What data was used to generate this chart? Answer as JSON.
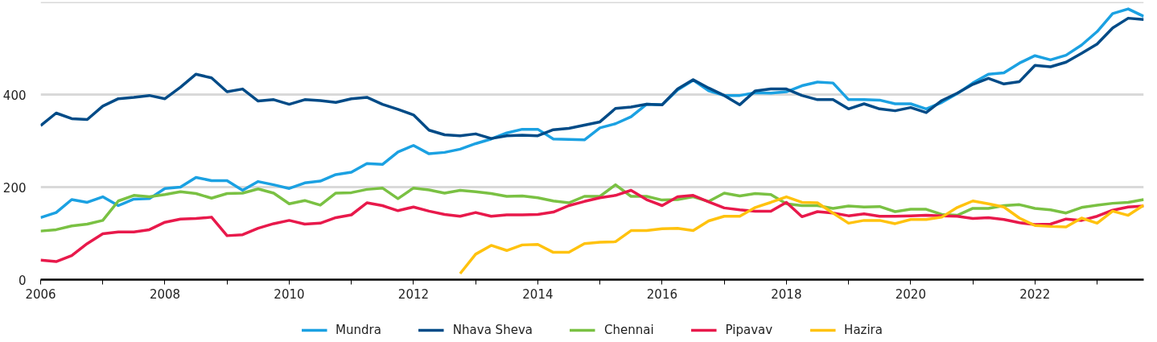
{
  "chart_data": {
    "type": "line",
    "x": [
      2006,
      2006.25,
      2006.5,
      2006.75,
      2007,
      2007.25,
      2007.5,
      2007.75,
      2008,
      2008.25,
      2008.5,
      2008.75,
      2009,
      2009.25,
      2009.5,
      2009.75,
      2010,
      2010.25,
      2010.5,
      2010.75,
      2011,
      2011.25,
      2011.5,
      2011.75,
      2012,
      2012.25,
      2012.5,
      2012.75,
      2013,
      2013.25,
      2013.5,
      2013.75,
      2014,
      2014.25,
      2014.5,
      2014.75,
      2015,
      2015.25,
      2015.5,
      2015.75,
      2016,
      2016.25,
      2016.5,
      2016.75,
      2017,
      2017.25,
      2017.5,
      2017.75,
      2018,
      2018.25,
      2018.5,
      2018.75,
      2019,
      2019.25,
      2019.5,
      2019.75,
      2020,
      2020.25,
      2020.5,
      2020.75,
      2021,
      2021.25,
      2021.5,
      2021.75,
      2022,
      2022.25,
      2022.5,
      2022.75,
      2023,
      2023.25,
      2023.5,
      2023.75
    ],
    "series": [
      {
        "name": "Mundra",
        "color": "#1ba1e2",
        "values": [
          134,
          145,
          173,
          167,
          179,
          160,
          174,
          175,
          197,
          200,
          221,
          214,
          214,
          193,
          212,
          205,
          197,
          209,
          213,
          227,
          232,
          251,
          249,
          276,
          290,
          272,
          275,
          282,
          294,
          304,
          317,
          325,
          325,
          304,
          303,
          302,
          328,
          337,
          352,
          379,
          378,
          410,
          431,
          408,
          398,
          398,
          404,
          403,
          406,
          419,
          427,
          425,
          389,
          389,
          388,
          380,
          380,
          369,
          383,
          402,
          425,
          444,
          447,
          468,
          484,
          475,
          485,
          507,
          536,
          575,
          585,
          569
        ]
      },
      {
        "name": "Nhava Sheva",
        "color": "#004b87",
        "values": [
          333,
          360,
          348,
          346,
          375,
          391,
          394,
          398,
          391,
          416,
          444,
          436,
          406,
          412,
          386,
          389,
          379,
          389,
          387,
          383,
          391,
          394,
          379,
          368,
          356,
          323,
          313,
          311,
          315,
          305,
          311,
          312,
          311,
          324,
          327,
          334,
          341,
          370,
          373,
          379,
          378,
          412,
          432,
          414,
          398,
          378,
          408,
          412,
          412,
          398,
          389,
          389,
          369,
          380,
          369,
          365,
          372,
          361,
          387,
          403,
          422,
          435,
          423,
          428,
          463,
          460,
          470,
          489,
          509,
          544,
          565,
          562
        ]
      },
      {
        "name": "Chennai",
        "color": "#7ac143",
        "values": [
          105,
          108,
          116,
          120,
          128,
          170,
          182,
          179,
          184,
          190,
          186,
          176,
          186,
          187,
          196,
          187,
          164,
          171,
          161,
          187,
          188,
          195,
          198,
          175,
          198,
          194,
          187,
          193,
          190,
          186,
          180,
          181,
          177,
          170,
          166,
          180,
          180,
          205,
          180,
          180,
          172,
          173,
          179,
          169,
          187,
          181,
          186,
          184,
          164,
          160,
          160,
          154,
          159,
          157,
          158,
          147,
          152,
          152,
          141,
          139,
          154,
          154,
          160,
          162,
          154,
          151,
          144,
          156,
          161,
          165,
          167,
          173
        ]
      },
      {
        "name": "Pipavav",
        "color": "#e8194b",
        "values": [
          42,
          39,
          52,
          78,
          99,
          103,
          103,
          108,
          124,
          131,
          132,
          135,
          95,
          97,
          111,
          121,
          128,
          120,
          122,
          134,
          140,
          166,
          160,
          149,
          157,
          148,
          141,
          137,
          145,
          137,
          140,
          140,
          141,
          146,
          160,
          169,
          177,
          182,
          193,
          173,
          160,
          179,
          182,
          168,
          155,
          151,
          148,
          148,
          167,
          136,
          147,
          144,
          138,
          142,
          137,
          137,
          138,
          139,
          138,
          137,
          132,
          134,
          130,
          123,
          119,
          120,
          131,
          128,
          137,
          150,
          157,
          159
        ]
      },
      {
        "name": "Hazira",
        "color": "#ffc20e",
        "values": [
          null,
          null,
          null,
          null,
          null,
          null,
          null,
          null,
          null,
          null,
          null,
          null,
          null,
          null,
          null,
          null,
          null,
          null,
          null,
          null,
          null,
          null,
          null,
          null,
          null,
          null,
          null,
          13,
          55,
          74,
          63,
          75,
          76,
          59,
          59,
          78,
          81,
          82,
          106,
          106,
          110,
          111,
          106,
          127,
          137,
          137,
          156,
          167,
          179,
          167,
          166,
          144,
          122,
          128,
          128,
          121,
          130,
          130,
          135,
          156,
          170,
          164,
          157,
          133,
          117,
          115,
          114,
          133,
          122,
          148,
          139,
          161
        ]
      }
    ],
    "xlim": [
      2006,
      2023.75
    ],
    "ylim": [
      0,
      600
    ],
    "xticks": [
      2006,
      {
        "value": 2007,
        "label": null
      },
      2008,
      {
        "value": 2009,
        "label": null
      },
      2010,
      {
        "value": 2011,
        "label": null
      },
      2012,
      {
        "value": 2013,
        "label": null
      },
      2014,
      {
        "value": 2015,
        "label": null
      },
      2016,
      {
        "value": 2017,
        "label": null
      },
      2018,
      {
        "value": 2019,
        "label": null
      },
      2020,
      {
        "value": 2021,
        "label": null
      },
      2022,
      {
        "value": 2023,
        "label": null
      }
    ],
    "yticks": [
      0,
      200,
      400,
      {
        "value": 600,
        "label": null
      }
    ],
    "grid": "y",
    "legend": "bottom"
  }
}
